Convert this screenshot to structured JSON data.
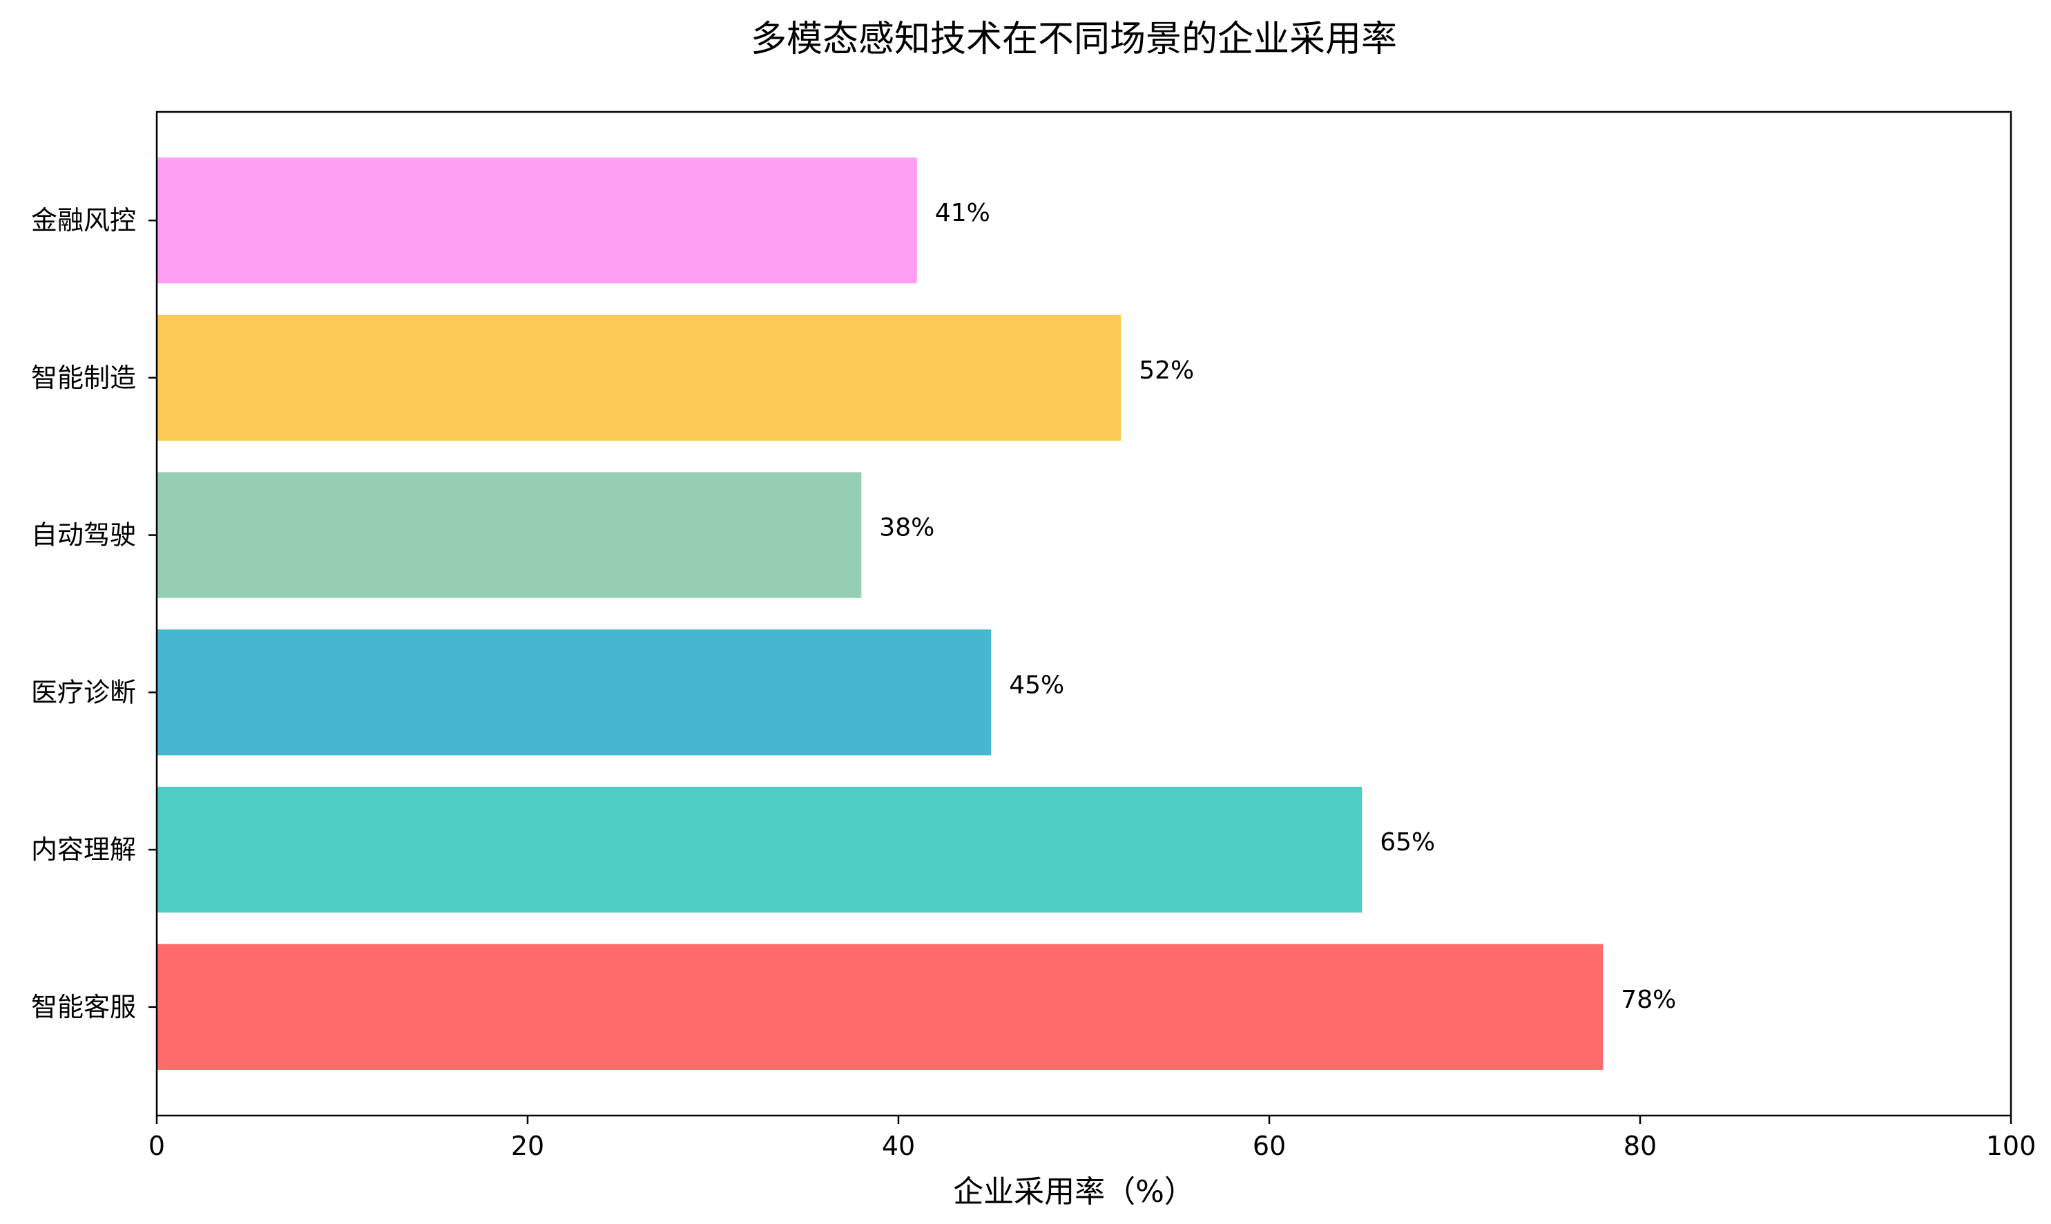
{
  "chart_data": {
    "type": "bar",
    "orientation": "horizontal",
    "title": "多模态感知技术在不同场景的企业采用率",
    "xlabel": "企业采用率（%）",
    "ylabel": "",
    "xlim": [
      0,
      100
    ],
    "x_ticks": [
      0,
      20,
      40,
      60,
      80,
      100
    ],
    "grid": false,
    "categories": [
      "智能客服",
      "内容理解",
      "医疗诊断",
      "自动驾驶",
      "智能制造",
      "金融风控"
    ],
    "values": [
      78,
      65,
      45,
      38,
      52,
      41
    ],
    "data_labels": [
      "78%",
      "65%",
      "45%",
      "38%",
      "52%",
      "41%"
    ],
    "colors": [
      "#ff6b6b",
      "#4ecdc4",
      "#45b7d1",
      "#96ceb4",
      "#feca57",
      "#ff9ff3"
    ]
  }
}
